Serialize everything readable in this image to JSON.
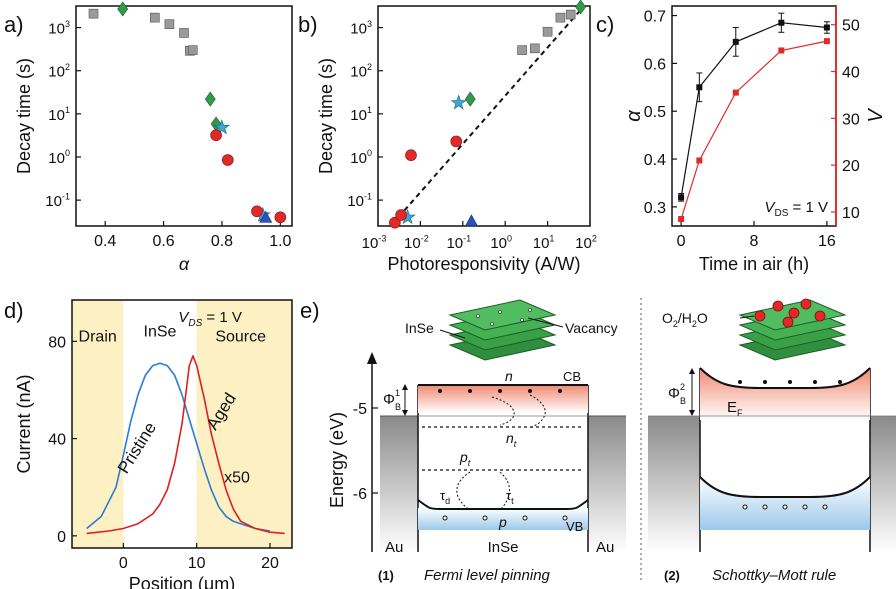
{
  "panels": {
    "a": "a)",
    "b": "b)",
    "c": "c)",
    "d": "d)",
    "e": "e)"
  },
  "colors": {
    "gray": "#9a9a9a",
    "green": "#2e9a4a",
    "red": "#e02a2a",
    "cyan": "#39a9d8",
    "blue": "#2a52b8",
    "c_black": "#111111",
    "c_red": "#e02a2a",
    "d_pristine": "#2b7bd6",
    "d_aged": "#e21e1e",
    "yellow": "#fdf1c4",
    "flake": "#3aa048",
    "cb_fill": "#f3a28c",
    "vb_fill": "#a7cdeb",
    "gold_gray": "#8a8a8a"
  },
  "chart_data": [
    {
      "id": "a",
      "type": "scatter",
      "xlabel": "α",
      "ylabel": "Decay time (s)",
      "xlim": [
        0.3,
        1.04
      ],
      "ylim_log10": [
        -1.6,
        3.5
      ],
      "yscale": "log",
      "xticks": [
        0.4,
        0.6,
        0.8,
        1.0
      ],
      "xtick_labels": [
        "0.4",
        "0.6",
        "0.8",
        "1.0"
      ],
      "yticks": [
        -1,
        0,
        1,
        2,
        3
      ],
      "ytick_labels": [
        "10",
        "10",
        "10",
        "10",
        "10"
      ],
      "ytick_exps": [
        "-1",
        "0",
        "1",
        "2",
        "3"
      ],
      "series": [
        {
          "marker": "square",
          "color": "gray",
          "points": [
            [
              0.36,
              2100
            ],
            [
              0.57,
              1700
            ],
            [
              0.62,
              1200
            ],
            [
              0.67,
              750
            ],
            [
              0.69,
              290
            ],
            [
              0.7,
              300
            ]
          ]
        },
        {
          "marker": "diamond",
          "color": "green",
          "points": [
            [
              0.46,
              2700
            ],
            [
              0.76,
              22
            ],
            [
              0.78,
              5.8
            ]
          ]
        },
        {
          "marker": "star",
          "color": "cyan",
          "points": [
            [
              0.8,
              4.8
            ],
            [
              0.94,
              0.045
            ]
          ]
        },
        {
          "marker": "circle",
          "color": "red",
          "points": [
            [
              0.78,
              3.2
            ],
            [
              0.82,
              0.85
            ],
            [
              0.92,
              0.055
            ],
            [
              1.0,
              0.04
            ]
          ]
        },
        {
          "marker": "triangle",
          "color": "blue",
          "points": [
            [
              0.95,
              0.04
            ]
          ]
        }
      ]
    },
    {
      "id": "b",
      "type": "scatter",
      "xlabel": "Photoresponsivity (A/W)",
      "ylabel": "Decay time (s)",
      "xlim_log10": [
        -3,
        2
      ],
      "ylim_log10": [
        -1.6,
        3.5
      ],
      "xscale": "log",
      "yscale": "log",
      "xticks": [
        -3,
        -2,
        -1,
        0,
        1,
        2
      ],
      "xtick_exps": [
        "-3",
        "-2",
        "-1",
        "0",
        "1",
        "2"
      ],
      "yticks": [
        -1,
        0,
        1,
        2,
        3
      ],
      "ytick_exps": [
        "-1",
        "0",
        "1",
        "2",
        "3"
      ],
      "tick_base": "10",
      "fit_line": {
        "from": [
          0.0022,
          0.028
        ],
        "to": [
          65,
          2800
        ]
      },
      "series": [
        {
          "marker": "square",
          "color": "gray",
          "points": [
            [
              2.5,
              300
            ],
            [
              5,
              330
            ],
            [
              10,
              800
            ],
            [
              20,
              1700
            ],
            [
              35,
              2000
            ]
          ]
        },
        {
          "marker": "diamond",
          "color": "green",
          "points": [
            [
              0.15,
              22
            ],
            [
              60,
              3000
            ]
          ]
        },
        {
          "marker": "star",
          "color": "cyan",
          "points": [
            [
              0.08,
              18
            ],
            [
              0.005,
              0.04
            ]
          ]
        },
        {
          "marker": "circle",
          "color": "red",
          "points": [
            [
              0.0025,
              0.03
            ],
            [
              0.0035,
              0.045
            ],
            [
              0.006,
              1.1
            ],
            [
              0.07,
              2.3
            ]
          ]
        },
        {
          "marker": "triangle",
          "color": "blue",
          "points": [
            [
              0.16,
              0.033
            ]
          ]
        }
      ]
    },
    {
      "id": "c",
      "type": "line",
      "xlabel": "Time in air (h)",
      "ylabel": "α",
      "ylabel_right": "V",
      "xlim": [
        -1,
        17
      ],
      "ylim": [
        0.26,
        0.72
      ],
      "ylim_right": [
        7,
        54
      ],
      "xticks": [
        0,
        8,
        16
      ],
      "xtick_labels": [
        "0",
        "8",
        "16"
      ],
      "yticks": [
        0.3,
        0.4,
        0.5,
        0.6,
        0.7
      ],
      "ytick_labels": [
        "0.3",
        "0.4",
        "0.5",
        "0.6",
        "0.7"
      ],
      "yticks_right": [
        10,
        20,
        30,
        40,
        50
      ],
      "ytick_right_labels": [
        "10",
        "20",
        "30",
        "40",
        "50"
      ],
      "annotation": "V",
      "annotation_sub": "DS",
      "annotation_tail": " = 1 V",
      "series": [
        {
          "name": "α",
          "axis": "left",
          "color": "c_black",
          "x": [
            0,
            2,
            6,
            11,
            16
          ],
          "y": [
            0.32,
            0.55,
            0.645,
            0.685,
            0.675
          ],
          "err": [
            0.008,
            0.03,
            0.03,
            0.02,
            0.012
          ]
        },
        {
          "name": "V",
          "axis": "right",
          "color": "c_red",
          "x": [
            0,
            2,
            6,
            11,
            16
          ],
          "y": [
            8.5,
            21,
            35.5,
            44.5,
            46.5
          ]
        }
      ]
    },
    {
      "id": "d",
      "type": "line",
      "xlabel": "Position (μm)",
      "ylabel": "Current (nA)",
      "xlim": [
        -7,
        23
      ],
      "ylim": [
        -5,
        97
      ],
      "xticks": [
        0,
        10,
        20
      ],
      "xtick_labels": [
        "0",
        "10",
        "20"
      ],
      "yticks": [
        0,
        40,
        80
      ],
      "ytick_labels": [
        "0",
        "40",
        "80"
      ],
      "regions": [
        {
          "label": "Drain",
          "x": [
            -7,
            0
          ]
        },
        {
          "label": "InSe",
          "x": [
            0,
            10
          ]
        },
        {
          "label": "Source",
          "x": [
            10,
            23
          ]
        }
      ],
      "annotation": "V",
      "annotation_sub": "DS",
      "annotation_tail": " = 1 V",
      "series": [
        {
          "name": "Pristine",
          "color": "d_pristine",
          "x": [
            -5,
            -3,
            -1,
            0,
            1,
            2,
            3,
            4,
            5,
            6,
            7,
            8,
            9,
            10,
            11,
            12,
            13,
            14,
            15,
            16,
            17,
            18,
            20
          ],
          "y": [
            3,
            8,
            20,
            33,
            47,
            58,
            66,
            70,
            71,
            70,
            66,
            58,
            48,
            38,
            28,
            19,
            12,
            8,
            6,
            5,
            4,
            3,
            2
          ]
        },
        {
          "name": "Aged",
          "name2": "x50",
          "color": "d_aged",
          "x": [
            -5,
            -2,
            0,
            2,
            4,
            5,
            6,
            7,
            8,
            8.5,
            9,
            9.5,
            10,
            11,
            12,
            13,
            14,
            15,
            16,
            18,
            20,
            22
          ],
          "y": [
            1,
            2,
            3,
            5,
            9,
            13,
            19,
            30,
            46,
            58,
            70,
            74,
            70,
            57,
            42,
            30,
            19,
            11,
            6,
            3,
            1.5,
            1
          ]
        }
      ]
    }
  ],
  "diagram1": {
    "axis_label": "Energy (eV)",
    "ticks": [
      "-5",
      "-6"
    ],
    "phi_base": "Φ",
    "phi_sub": "B",
    "phi_sup": "1",
    "flake_left": "InSe",
    "flake_right": "Vacancy",
    "n": "n",
    "cb": "CB",
    "nt": "n",
    "nt_sub": "t",
    "pt": "p",
    "pt_sub": "t",
    "tau_d": "τ",
    "tau_d_sub": "d",
    "tau_t": "τ",
    "tau_t_sub": "t",
    "p": "p",
    "vb": "VB",
    "au_left": "Au",
    "insemid": "InSe",
    "au_right": "Au",
    "caption_num": "(1)",
    "caption": "Fermi level pinning"
  },
  "diagram2": {
    "molecule": "O",
    "molecule_sub1": "2",
    "molecule_mid": "/H",
    "molecule_sub2": "2",
    "molecule_tail": "O",
    "phi_base": "Φ",
    "phi_sub": "B",
    "phi_sup": "2",
    "ef": "E",
    "ef_sub": "F",
    "caption_num": "(2)",
    "caption": "Schottky–Mott rule"
  }
}
